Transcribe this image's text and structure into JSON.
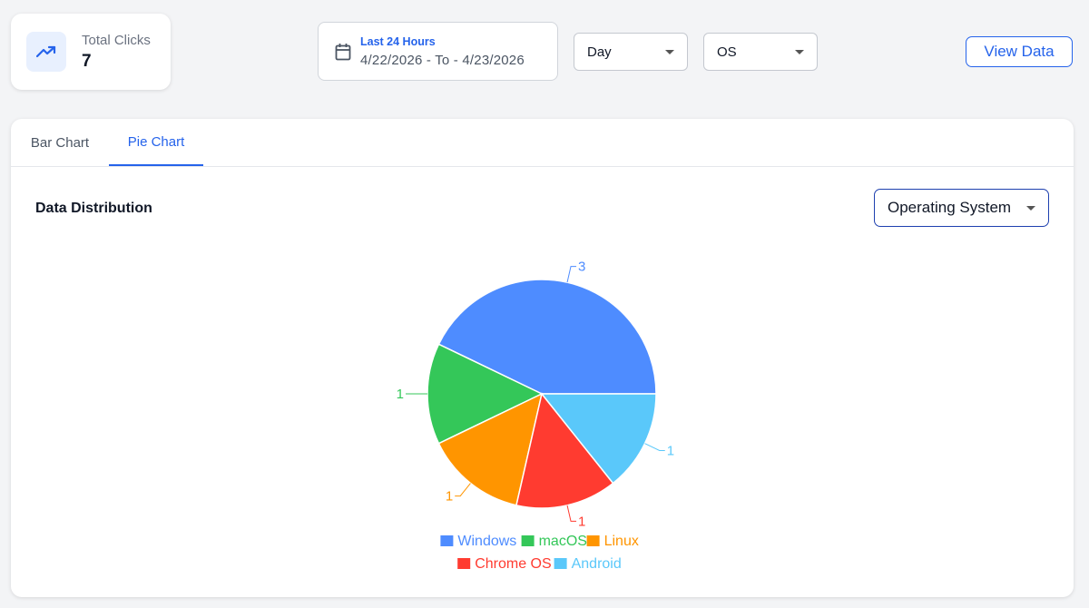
{
  "summary": {
    "total_clicks_label": "Total Clicks",
    "total_clicks_value": "7",
    "icon": "trending-up-icon"
  },
  "date_range": {
    "title": "Last 24 Hours",
    "range": "4/22/2026 - To - 4/23/2026",
    "icon": "calendar-icon"
  },
  "filters": {
    "interval": "Day",
    "dimension": "OS"
  },
  "actions": {
    "view_data_label": "View Data"
  },
  "tabs": [
    {
      "label": "Bar Chart",
      "active": false
    },
    {
      "label": "Pie Chart",
      "active": true
    }
  ],
  "section": {
    "title": "Data Distribution",
    "group_by": "Operating System"
  },
  "colors": {
    "accent": "#2563eb"
  },
  "chart_data": {
    "type": "pie",
    "categories": [
      "Windows",
      "macOS",
      "Linux",
      "Chrome OS",
      "Android"
    ],
    "values": [
      3,
      1,
      1,
      1,
      1
    ],
    "colors": [
      "#4e8cff",
      "#34c759",
      "#ff9500",
      "#ff3b30",
      "#5ac8fa"
    ],
    "legend_placement": "bottom"
  }
}
